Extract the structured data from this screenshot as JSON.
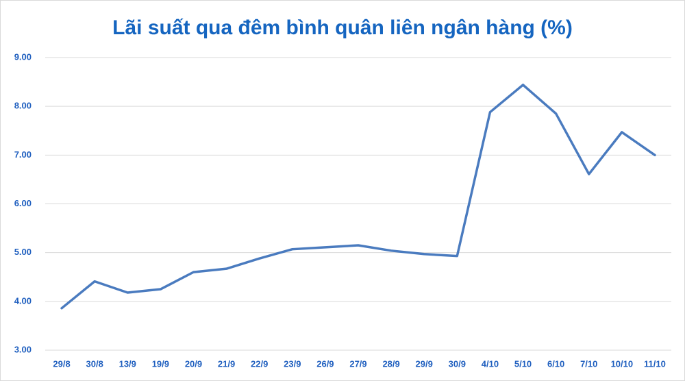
{
  "chart_data": {
    "type": "line",
    "title": "Lãi suất qua đêm bình quân liên ngân hàng (%)",
    "categories": [
      "29/8",
      "30/8",
      "13/9",
      "19/9",
      "20/9",
      "21/9",
      "22/9",
      "23/9",
      "26/9",
      "27/9",
      "28/9",
      "29/9",
      "30/9",
      "4/10",
      "5/10",
      "6/10",
      "7/10",
      "10/10",
      "11/10"
    ],
    "series": [
      {
        "name": "Lãi suất qua đêm",
        "color": "#4a7bbf",
        "values": [
          3.86,
          4.41,
          4.18,
          4.25,
          4.6,
          4.67,
          4.88,
          5.07,
          5.11,
          5.15,
          5.04,
          4.97,
          4.93,
          7.88,
          8.44,
          7.85,
          6.61,
          7.47,
          7.0
        ]
      }
    ],
    "ylim": [
      3,
      9
    ],
    "yticks": [
      {
        "value": 3,
        "label": "3.00"
      },
      {
        "value": 4,
        "label": "4.00"
      },
      {
        "value": 5,
        "label": "5.00"
      },
      {
        "value": 6,
        "label": "6.00"
      },
      {
        "value": 7,
        "label": "7.00"
      },
      {
        "value": 8,
        "label": "8.00"
      },
      {
        "value": 9,
        "label": "9.00"
      }
    ],
    "grid": true
  }
}
